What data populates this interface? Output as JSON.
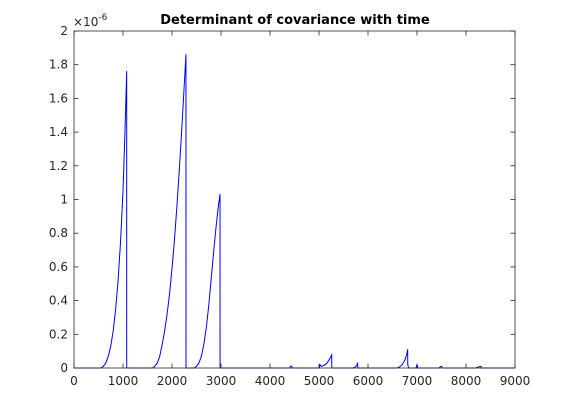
{
  "chart_data": {
    "type": "line",
    "title": "Determinant of covariance with time",
    "xlabel": "",
    "ylabel": "",
    "xlim": [
      0,
      9000
    ],
    "ylim": [
      0,
      2
    ],
    "y_exponent_label": "×10",
    "y_exponent_power": "-6",
    "grid": false,
    "legend": "none",
    "line_color": "#0000ff",
    "x_ticks": [
      "0",
      "1000",
      "2000",
      "3000",
      "4000",
      "5000",
      "6000",
      "7000",
      "8000",
      "9000"
    ],
    "y_ticks": [
      "0",
      "0.2",
      "0.4",
      "0.6",
      "0.8",
      "1",
      "1.2",
      "1.4",
      "1.6",
      "1.8",
      "2"
    ],
    "series": [
      {
        "x": [
          0,
          550,
          600,
          650,
          700,
          750,
          800,
          850,
          900,
          950,
          1000,
          1040,
          1075,
          1076,
          1200,
          1600,
          1650,
          1700,
          1750,
          1800,
          1850,
          1900,
          1950,
          2000,
          2050,
          2100,
          2150,
          2200,
          2250,
          2285,
          2286,
          2450,
          2500,
          2550,
          2600,
          2650,
          2700,
          2750,
          2800,
          2850,
          2900,
          2950,
          2980,
          2981,
          3100,
          4400,
          4420,
          4440,
          4460,
          5000,
          5010,
          5020,
          5030,
          5050,
          5100,
          5150,
          5200,
          5240,
          5260,
          5261,
          5700,
          5750,
          5780,
          5790,
          5791,
          6000,
          6600,
          6650,
          6700,
          6750,
          6790,
          6810,
          6811,
          6830,
          6900,
          6980,
          7000,
          7020,
          7200,
          7450,
          7480,
          7500,
          7520,
          8200,
          8280,
          8300,
          8320,
          9000
        ],
        "y": [
          0,
          0,
          0.01,
          0.03,
          0.07,
          0.13,
          0.22,
          0.35,
          0.52,
          0.75,
          1.05,
          1.4,
          1.76,
          0,
          0,
          0,
          0.01,
          0.03,
          0.07,
          0.14,
          0.22,
          0.32,
          0.44,
          0.59,
          0.76,
          0.96,
          1.18,
          1.42,
          1.68,
          1.86,
          0,
          0,
          0.01,
          0.03,
          0.07,
          0.14,
          0.24,
          0.37,
          0.53,
          0.69,
          0.84,
          0.97,
          1.03,
          0,
          0,
          0,
          0.01,
          0.012,
          0,
          0,
          0.005,
          0.02,
          0.015,
          0.01,
          0.015,
          0.025,
          0.045,
          0.065,
          0.08,
          0,
          0,
          0.008,
          0.02,
          0.03,
          0,
          0,
          0,
          0.008,
          0.02,
          0.045,
          0.08,
          0.11,
          0.02,
          0,
          0,
          0,
          0.02,
          0,
          0,
          0,
          0.008,
          0.01,
          0,
          0,
          0.008,
          0.01,
          0,
          0
        ]
      }
    ]
  }
}
